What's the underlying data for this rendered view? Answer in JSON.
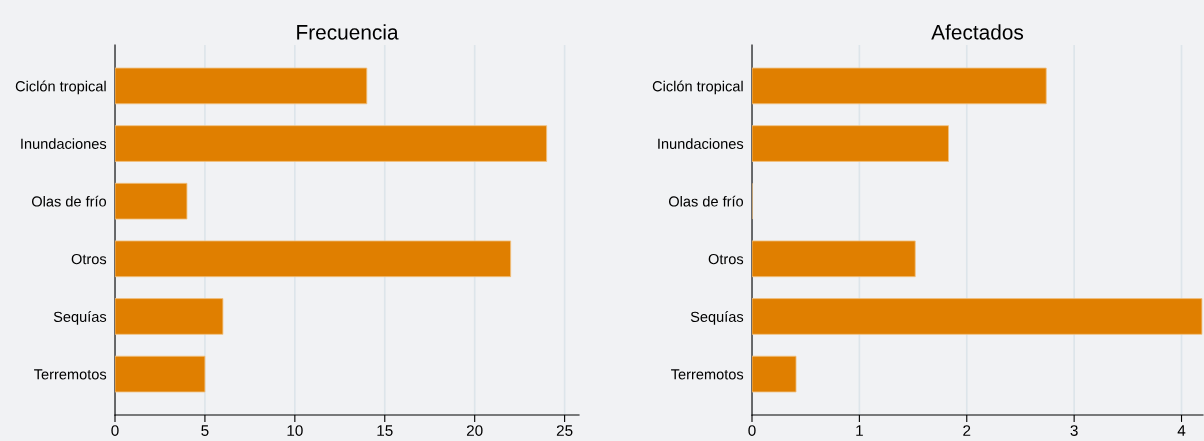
{
  "chart_data": [
    {
      "type": "bar",
      "orientation": "horizontal",
      "title": "Frecuencia",
      "categories": [
        "Ciclón tropical",
        "Inundaciones",
        "Olas de frío",
        "Otros",
        "Sequías",
        "Terremotos"
      ],
      "series": [
        {
          "color": "#e07f00",
          "values": [
            14,
            24,
            4,
            22,
            6,
            5
          ]
        }
      ],
      "xlim": [
        0,
        25.8
      ],
      "xticks": [
        0,
        5,
        10,
        15,
        20,
        25
      ],
      "grid": "x",
      "legend": false
    },
    {
      "type": "bar",
      "orientation": "horizontal",
      "title": "Afectados",
      "categories": [
        "Ciclón tropical",
        "Inundaciones",
        "Olas de frío",
        "Otros",
        "Sequías",
        "Terremotos"
      ],
      "series": [
        {
          "color": "#e07f00",
          "values": [
            2.74,
            1.83,
            null,
            1.52,
            4.19,
            0.41
          ]
        }
      ],
      "xlim": [
        0,
        4.2
      ],
      "xticks": [
        0,
        1,
        2,
        3,
        4
      ],
      "grid": "x",
      "legend": false
    }
  ]
}
